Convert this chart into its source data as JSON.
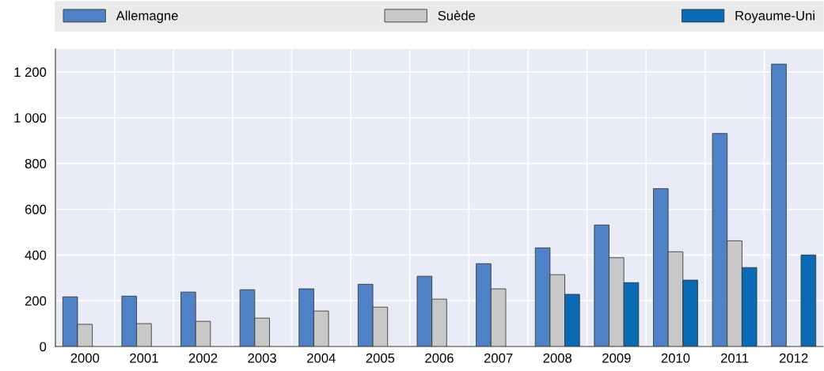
{
  "chart_data": {
    "type": "bar",
    "categories": [
      "2000",
      "2001",
      "2002",
      "2003",
      "2004",
      "2005",
      "2006",
      "2007",
      "2008",
      "2009",
      "2010",
      "2011",
      "2012"
    ],
    "series": [
      {
        "name": "Allemagne",
        "color": "#4f81c7",
        "values": [
          217,
          220,
          238,
          248,
          252,
          272,
          307,
          362,
          431,
          531,
          690,
          931,
          1234
        ]
      },
      {
        "name": "Suède",
        "color": "#c8c8c8",
        "values": [
          97,
          100,
          110,
          124,
          155,
          172,
          207,
          252,
          314,
          388,
          414,
          462,
          null
        ]
      },
      {
        "name": "Royaume-Uni",
        "color": "#0a6ab4",
        "values": [
          null,
          null,
          null,
          null,
          null,
          null,
          null,
          null,
          228,
          279,
          290,
          345,
          400
        ]
      }
    ],
    "ylim": [
      0,
      1300
    ],
    "yticks": [
      0,
      200,
      400,
      600,
      800,
      {
        "value": 1000,
        "label": "1 000"
      },
      {
        "value": 1200,
        "label": "1 200"
      }
    ],
    "grid": true,
    "legend": "top"
  }
}
